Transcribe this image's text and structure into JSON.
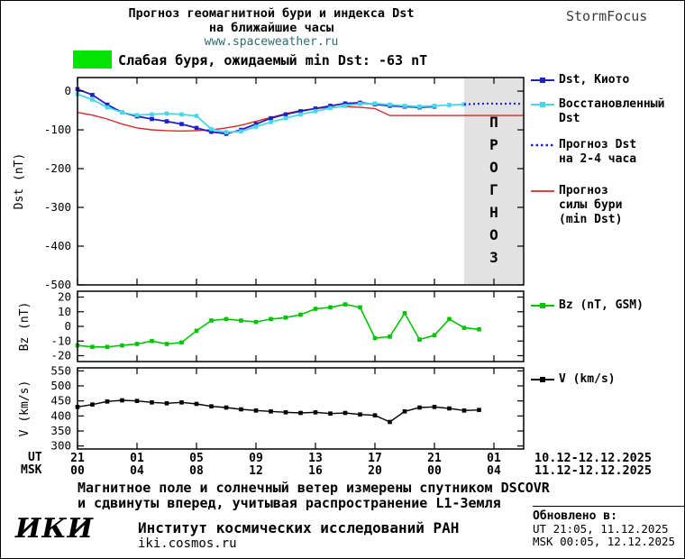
{
  "header": {
    "title_line1": "Прогноз геомагнитной бури и индекса Dst",
    "title_line2": "на ближайшие часы",
    "website": "www.spaceweather.ru",
    "brand": "StormFocus"
  },
  "status": {
    "text": "Слабая буря, ожидаемый min Dst: -63 nT",
    "swatch_color": "#00e400"
  },
  "legend_dst": {
    "items": [
      {
        "lines": [
          "Dst, Киото"
        ]
      },
      {
        "lines": [
          "Восстановленный",
          "Dst"
        ]
      },
      {
        "lines": [
          "Прогноз Dst",
          "на 2-4 часа"
        ]
      },
      {
        "lines": [
          "Прогноз",
          "силы бури",
          "(min Dst)"
        ]
      }
    ]
  },
  "legend_bz": {
    "label": "Bz (nT, GSM)"
  },
  "legend_v": {
    "label": "V (km/s)"
  },
  "xaxis": {
    "ut_label": "UT",
    "msk_label": "MSK",
    "ut_ticks": [
      "21",
      "01",
      "05",
      "09",
      "13",
      "17",
      "21",
      "01"
    ],
    "msk_ticks": [
      "00",
      "04",
      "08",
      "12",
      "16",
      "20",
      "00",
      "04"
    ],
    "ut_range": "10.12-12.12.2025",
    "msk_range": "11.12-12.12.2025"
  },
  "footer": {
    "note_line1": "Магнитное поле и солнечный ветер измерены спутником DSCOVR",
    "note_line2": "и сдвинуты вперед, учитывая распространение L1-Земля",
    "logo": "ИКИ",
    "institute": "Институт космических исследований РАН",
    "site": "iki.cosmos.ru"
  },
  "updated": {
    "label": "Обновлено в:",
    "ut": "UT  21:05, 11.12.2025",
    "msk": "MSK 00:05, 12.12.2025"
  },
  "chart_data": [
    {
      "type": "line",
      "panel": "dst",
      "ylabel": "Dst (nT)",
      "ylim": [
        -500,
        35
      ],
      "yticks": [
        0,
        -100,
        -200,
        -300,
        -400,
        -500
      ],
      "xlim": [
        0,
        30
      ],
      "xticks_hours": [
        0,
        4,
        8,
        12,
        16,
        20,
        24,
        28
      ],
      "forecast_region": {
        "start": 26,
        "end": 30,
        "label": "ПРОГНОЗ"
      },
      "series": [
        {
          "name": "Прогноз силы бури (min Dst)",
          "color": "#d42a2a",
          "line": "solid",
          "width": 1.4,
          "x": [
            0,
            1,
            2,
            3,
            4,
            5,
            6,
            7,
            8,
            9,
            10,
            11,
            12,
            13,
            14,
            15,
            16,
            17,
            18,
            19,
            20,
            21,
            22,
            23,
            24,
            25,
            26,
            27,
            28,
            29,
            30
          ],
          "values": [
            -55,
            -62,
            -72,
            -85,
            -95,
            -100,
            -102,
            -103,
            -102,
            -100,
            -95,
            -88,
            -78,
            -68,
            -58,
            -50,
            -45,
            -42,
            -40,
            -42,
            -45,
            -63,
            -63,
            -63,
            -63,
            -63,
            -63,
            -63,
            -63,
            -63,
            -63
          ]
        },
        {
          "name": "Dst, Киото",
          "color": "#1f1fc8",
          "marker": "square",
          "width": 1.8,
          "x": [
            0,
            1,
            2,
            3,
            4,
            5,
            6,
            7,
            8,
            9,
            10,
            11,
            12,
            13,
            14,
            15,
            16,
            17,
            18,
            19,
            20,
            21,
            22,
            23,
            24
          ],
          "values": [
            5,
            -10,
            -35,
            -55,
            -65,
            -72,
            -78,
            -85,
            -95,
            -105,
            -110,
            -100,
            -85,
            -70,
            -60,
            -52,
            -45,
            -38,
            -32,
            -30,
            -34,
            -38,
            -40,
            -42,
            -40
          ]
        },
        {
          "name": "Восстановленный Dst",
          "color": "#48d8e8",
          "marker": "square",
          "width": 1.8,
          "x": [
            0,
            1,
            2,
            3,
            4,
            5,
            6,
            7,
            8,
            9,
            10,
            11,
            12,
            13,
            14,
            15,
            16,
            17,
            18,
            19,
            20,
            21,
            22,
            23,
            24,
            25,
            26
          ],
          "values": [
            -8,
            -22,
            -42,
            -55,
            -62,
            -60,
            -58,
            -60,
            -64,
            -98,
            -106,
            -104,
            -92,
            -80,
            -70,
            -60,
            -52,
            -44,
            -38,
            -33,
            -32,
            -35,
            -38,
            -40,
            -38,
            -36,
            -34
          ]
        },
        {
          "name": "Прогноз Dst на 2-4 часа",
          "color": "#2222cc",
          "line": "dotted",
          "width": 2.2,
          "x": [
            26,
            26.8,
            27.6,
            28.4,
            29.2,
            29.8
          ],
          "values": [
            -34,
            -33,
            -32,
            -33,
            -32,
            -33
          ]
        }
      ]
    },
    {
      "type": "line",
      "panel": "bz",
      "ylabel": "Bz (nT)",
      "ylim": [
        -24,
        24
      ],
      "yticks": [
        20,
        10,
        0,
        -10,
        -20
      ],
      "xlim": [
        0,
        30
      ],
      "xticks_hours": [
        0,
        4,
        8,
        12,
        16,
        20,
        24,
        28
      ],
      "series": [
        {
          "name": "Bz (nT, GSM)",
          "color": "#00c400",
          "marker": "square",
          "width": 1.6,
          "x": [
            0,
            1,
            2,
            3,
            4,
            5,
            6,
            7,
            8,
            9,
            10,
            11,
            12,
            13,
            14,
            15,
            16,
            17,
            18,
            19,
            20,
            21,
            22,
            23,
            24,
            25,
            26,
            27
          ],
          "values": [
            -13,
            -14,
            -14,
            -13,
            -12,
            -10,
            -12,
            -11,
            -3,
            4,
            5,
            4,
            3,
            5,
            6,
            8,
            12,
            13,
            15,
            13,
            -8,
            -7,
            9,
            -9,
            -6,
            5,
            -1,
            -2
          ]
        }
      ]
    },
    {
      "type": "line",
      "panel": "v",
      "ylabel": "V (km/s)",
      "ylim": [
        290,
        560
      ],
      "yticks": [
        550,
        500,
        450,
        400,
        350,
        300
      ],
      "xlim": [
        0,
        30
      ],
      "xticks_hours": [
        0,
        4,
        8,
        12,
        16,
        20,
        24,
        28
      ],
      "series": [
        {
          "name": "V (km/s)",
          "color": "#000000",
          "marker": "square",
          "width": 1.4,
          "x": [
            0,
            1,
            2,
            3,
            4,
            5,
            6,
            7,
            8,
            9,
            10,
            11,
            12,
            13,
            14,
            15,
            16,
            17,
            18,
            19,
            20,
            21,
            22,
            23,
            24,
            25,
            26,
            27
          ],
          "values": [
            430,
            438,
            448,
            452,
            450,
            445,
            442,
            445,
            440,
            432,
            428,
            422,
            418,
            415,
            412,
            410,
            412,
            408,
            410,
            405,
            402,
            380,
            415,
            428,
            430,
            425,
            418,
            420
          ]
        }
      ]
    }
  ]
}
